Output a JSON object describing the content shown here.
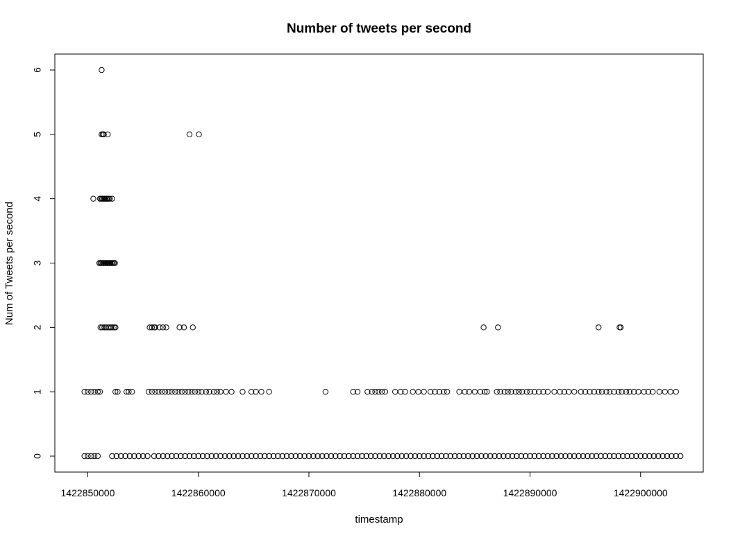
{
  "chart_data": {
    "type": "scatter",
    "title": "Number of tweets per second",
    "xlabel": "timestamp",
    "ylabel": "Num of Tweets per second",
    "xlim": [
      1422849500,
      1422903500
    ],
    "ylim": [
      0,
      6
    ],
    "xticks": [
      1422850000,
      1422860000,
      1422870000,
      1422880000,
      1422890000,
      1422900000
    ],
    "xtick_labels": [
      "1422850000",
      "1422860000",
      "1422870000",
      "1422880000",
      "1422890000",
      "1422900000"
    ],
    "yticks": [
      0,
      1,
      2,
      3,
      4,
      5,
      6
    ],
    "ytick_labels": [
      "0",
      "1",
      "2",
      "3",
      "4",
      "5",
      "6"
    ],
    "grid": false,
    "marker": "open-circle",
    "colors": {
      "marker": "#000000",
      "axis": "#000000",
      "background": "#ffffff"
    },
    "series": [
      {
        "points": [
          [
            1422851250,
            6
          ],
          [
            1422851250,
            5
          ],
          [
            1422851350,
            5
          ],
          [
            1422851450,
            5
          ],
          [
            1422851800,
            5
          ],
          [
            1422859200,
            5
          ],
          [
            1422860050,
            5
          ],
          [
            1422850500,
            4
          ],
          [
            1422851100,
            4
          ],
          [
            1422851200,
            4
          ],
          [
            1422851300,
            4
          ],
          [
            1422851400,
            4
          ],
          [
            1422851500,
            4
          ],
          [
            1422851600,
            4
          ],
          [
            1422851700,
            4
          ],
          [
            1422851800,
            4
          ],
          [
            1422851900,
            4
          ],
          [
            1422852000,
            4
          ],
          [
            1422852200,
            4
          ],
          [
            1422851050,
            3
          ],
          [
            1422851150,
            3
          ],
          [
            1422851250,
            3
          ],
          [
            1422851350,
            3
          ],
          [
            1422851450,
            3
          ],
          [
            1422851550,
            3
          ],
          [
            1422851650,
            3
          ],
          [
            1422851750,
            3
          ],
          [
            1422851850,
            3
          ],
          [
            1422851950,
            3
          ],
          [
            1422852050,
            3
          ],
          [
            1422852150,
            3
          ],
          [
            1422852250,
            3
          ],
          [
            1422852350,
            3
          ],
          [
            1422852450,
            3
          ],
          [
            1422851150,
            2
          ],
          [
            1422851300,
            2
          ],
          [
            1422851500,
            2
          ],
          [
            1422851650,
            2
          ],
          [
            1422851800,
            2
          ],
          [
            1422851950,
            2
          ],
          [
            1422852100,
            2
          ],
          [
            1422852250,
            2
          ],
          [
            1422852400,
            2
          ],
          [
            1422852500,
            2
          ],
          [
            1422855600,
            2
          ],
          [
            1422855800,
            2
          ],
          [
            1422856000,
            2
          ],
          [
            1422856100,
            2
          ],
          [
            1422856500,
            2
          ],
          [
            1422856800,
            2
          ],
          [
            1422857100,
            2
          ],
          [
            1422858300,
            2
          ],
          [
            1422858700,
            2
          ],
          [
            1422859500,
            2
          ],
          [
            1422885800,
            2
          ],
          [
            1422887100,
            2
          ],
          [
            1422896200,
            2
          ],
          [
            1422898100,
            2
          ],
          [
            1422898200,
            2
          ],
          [
            1422849700,
            1
          ],
          [
            1422850000,
            1
          ],
          [
            1422850300,
            1
          ],
          [
            1422850600,
            1
          ],
          [
            1422850900,
            1
          ],
          [
            1422851100,
            1
          ],
          [
            1422852500,
            1
          ],
          [
            1422852700,
            1
          ],
          [
            1422853500,
            1
          ],
          [
            1422853700,
            1
          ],
          [
            1422854000,
            1
          ],
          [
            1422855500,
            1
          ],
          [
            1422855800,
            1
          ],
          [
            1422856100,
            1
          ],
          [
            1422856400,
            1
          ],
          [
            1422856700,
            1
          ],
          [
            1422857000,
            1
          ],
          [
            1422857300,
            1
          ],
          [
            1422857600,
            1
          ],
          [
            1422857900,
            1
          ],
          [
            1422858200,
            1
          ],
          [
            1422858500,
            1
          ],
          [
            1422858800,
            1
          ],
          [
            1422859100,
            1
          ],
          [
            1422859400,
            1
          ],
          [
            1422859700,
            1
          ],
          [
            1422860000,
            1
          ],
          [
            1422860300,
            1
          ],
          [
            1422860700,
            1
          ],
          [
            1422861000,
            1
          ],
          [
            1422861400,
            1
          ],
          [
            1422861700,
            1
          ],
          [
            1422862000,
            1
          ],
          [
            1422862500,
            1
          ],
          [
            1422863000,
            1
          ],
          [
            1422864000,
            1
          ],
          [
            1422864800,
            1
          ],
          [
            1422865200,
            1
          ],
          [
            1422865700,
            1
          ],
          [
            1422866400,
            1
          ],
          [
            1422871500,
            1
          ],
          [
            1422874000,
            1
          ],
          [
            1422874400,
            1
          ],
          [
            1422875300,
            1
          ],
          [
            1422875700,
            1
          ],
          [
            1422876000,
            1
          ],
          [
            1422876300,
            1
          ],
          [
            1422876600,
            1
          ],
          [
            1422876900,
            1
          ],
          [
            1422877800,
            1
          ],
          [
            1422878300,
            1
          ],
          [
            1422878700,
            1
          ],
          [
            1422879400,
            1
          ],
          [
            1422879900,
            1
          ],
          [
            1422880400,
            1
          ],
          [
            1422881000,
            1
          ],
          [
            1422881400,
            1
          ],
          [
            1422881800,
            1
          ],
          [
            1422882200,
            1
          ],
          [
            1422882500,
            1
          ],
          [
            1422883600,
            1
          ],
          [
            1422884100,
            1
          ],
          [
            1422884500,
            1
          ],
          [
            1422885000,
            1
          ],
          [
            1422885500,
            1
          ],
          [
            1422885900,
            1
          ],
          [
            1422886100,
            1
          ],
          [
            1422887000,
            1
          ],
          [
            1422887300,
            1
          ],
          [
            1422887700,
            1
          ],
          [
            1422888000,
            1
          ],
          [
            1422888300,
            1
          ],
          [
            1422888700,
            1
          ],
          [
            1422889000,
            1
          ],
          [
            1422889300,
            1
          ],
          [
            1422889700,
            1
          ],
          [
            1422890000,
            1
          ],
          [
            1422890400,
            1
          ],
          [
            1422890800,
            1
          ],
          [
            1422891200,
            1
          ],
          [
            1422891600,
            1
          ],
          [
            1422892200,
            1
          ],
          [
            1422892700,
            1
          ],
          [
            1422893100,
            1
          ],
          [
            1422893500,
            1
          ],
          [
            1422894000,
            1
          ],
          [
            1422894600,
            1
          ],
          [
            1422895000,
            1
          ],
          [
            1422895400,
            1
          ],
          [
            1422895800,
            1
          ],
          [
            1422896200,
            1
          ],
          [
            1422896500,
            1
          ],
          [
            1422896900,
            1
          ],
          [
            1422897200,
            1
          ],
          [
            1422897600,
            1
          ],
          [
            1422898000,
            1
          ],
          [
            1422898300,
            1
          ],
          [
            1422898700,
            1
          ],
          [
            1422899000,
            1
          ],
          [
            1422899400,
            1
          ],
          [
            1422899800,
            1
          ],
          [
            1422900300,
            1
          ],
          [
            1422900700,
            1
          ],
          [
            1422901100,
            1
          ],
          [
            1422901700,
            1
          ],
          [
            1422902200,
            1
          ],
          [
            1422902700,
            1
          ],
          [
            1422903200,
            1
          ],
          [
            1422849700,
            0
          ],
          [
            1422850000,
            0
          ],
          [
            1422850300,
            0
          ],
          [
            1422850600,
            0
          ],
          [
            1422850900,
            0
          ],
          [
            1422852200,
            0
          ],
          [
            1422852600,
            0
          ],
          [
            1422853000,
            0
          ],
          [
            1422853400,
            0
          ],
          [
            1422853800,
            0
          ],
          [
            1422854200,
            0
          ],
          [
            1422854600,
            0
          ],
          [
            1422855000,
            0
          ],
          [
            1422855400,
            0
          ],
          [
            1422856000,
            0
          ],
          [
            1422856400,
            0
          ],
          [
            1422856800,
            0
          ],
          [
            1422857200,
            0
          ],
          [
            1422857600,
            0
          ],
          [
            1422858000,
            0
          ],
          [
            1422858400,
            0
          ],
          [
            1422858800,
            0
          ],
          [
            1422859200,
            0
          ],
          [
            1422859600,
            0
          ],
          [
            1422860000,
            0
          ],
          [
            1422860400,
            0
          ],
          [
            1422860800,
            0
          ],
          [
            1422861200,
            0
          ],
          [
            1422861600,
            0
          ],
          [
            1422862000,
            0
          ],
          [
            1422862400,
            0
          ],
          [
            1422862800,
            0
          ],
          [
            1422863200,
            0
          ],
          [
            1422863600,
            0
          ],
          [
            1422864000,
            0
          ],
          [
            1422864400,
            0
          ],
          [
            1422864800,
            0
          ],
          [
            1422865200,
            0
          ],
          [
            1422865600,
            0
          ],
          [
            1422866000,
            0
          ],
          [
            1422866400,
            0
          ],
          [
            1422866800,
            0
          ],
          [
            1422867200,
            0
          ],
          [
            1422867600,
            0
          ],
          [
            1422868000,
            0
          ],
          [
            1422868400,
            0
          ],
          [
            1422868800,
            0
          ],
          [
            1422869200,
            0
          ],
          [
            1422869600,
            0
          ],
          [
            1422870000,
            0
          ],
          [
            1422870400,
            0
          ],
          [
            1422870800,
            0
          ],
          [
            1422871200,
            0
          ],
          [
            1422871600,
            0
          ],
          [
            1422872000,
            0
          ],
          [
            1422872400,
            0
          ],
          [
            1422872800,
            0
          ],
          [
            1422873200,
            0
          ],
          [
            1422873600,
            0
          ],
          [
            1422874000,
            0
          ],
          [
            1422874400,
            0
          ],
          [
            1422874800,
            0
          ],
          [
            1422875200,
            0
          ],
          [
            1422875600,
            0
          ],
          [
            1422876000,
            0
          ],
          [
            1422876400,
            0
          ],
          [
            1422876800,
            0
          ],
          [
            1422877200,
            0
          ],
          [
            1422877600,
            0
          ],
          [
            1422878000,
            0
          ],
          [
            1422878400,
            0
          ],
          [
            1422878800,
            0
          ],
          [
            1422879200,
            0
          ],
          [
            1422879600,
            0
          ],
          [
            1422880000,
            0
          ],
          [
            1422880400,
            0
          ],
          [
            1422880800,
            0
          ],
          [
            1422881200,
            0
          ],
          [
            1422881600,
            0
          ],
          [
            1422882000,
            0
          ],
          [
            1422882400,
            0
          ],
          [
            1422882800,
            0
          ],
          [
            1422883200,
            0
          ],
          [
            1422883600,
            0
          ],
          [
            1422884000,
            0
          ],
          [
            1422884400,
            0
          ],
          [
            1422884800,
            0
          ],
          [
            1422885200,
            0
          ],
          [
            1422885600,
            0
          ],
          [
            1422886000,
            0
          ],
          [
            1422886400,
            0
          ],
          [
            1422886800,
            0
          ],
          [
            1422887200,
            0
          ],
          [
            1422887600,
            0
          ],
          [
            1422888000,
            0
          ],
          [
            1422888400,
            0
          ],
          [
            1422888800,
            0
          ],
          [
            1422889200,
            0
          ],
          [
            1422889600,
            0
          ],
          [
            1422890000,
            0
          ],
          [
            1422890400,
            0
          ],
          [
            1422890800,
            0
          ],
          [
            1422891200,
            0
          ],
          [
            1422891600,
            0
          ],
          [
            1422892000,
            0
          ],
          [
            1422892400,
            0
          ],
          [
            1422892800,
            0
          ],
          [
            1422893200,
            0
          ],
          [
            1422893600,
            0
          ],
          [
            1422894000,
            0
          ],
          [
            1422894400,
            0
          ],
          [
            1422894800,
            0
          ],
          [
            1422895200,
            0
          ],
          [
            1422895600,
            0
          ],
          [
            1422896000,
            0
          ],
          [
            1422896400,
            0
          ],
          [
            1422896800,
            0
          ],
          [
            1422897200,
            0
          ],
          [
            1422897600,
            0
          ],
          [
            1422898000,
            0
          ],
          [
            1422898400,
            0
          ],
          [
            1422898800,
            0
          ],
          [
            1422899200,
            0
          ],
          [
            1422899600,
            0
          ],
          [
            1422900000,
            0
          ],
          [
            1422900400,
            0
          ],
          [
            1422900800,
            0
          ],
          [
            1422901200,
            0
          ],
          [
            1422901600,
            0
          ],
          [
            1422902000,
            0
          ],
          [
            1422902400,
            0
          ],
          [
            1422902800,
            0
          ],
          [
            1422903200,
            0
          ],
          [
            1422903600,
            0
          ]
        ]
      }
    ]
  }
}
